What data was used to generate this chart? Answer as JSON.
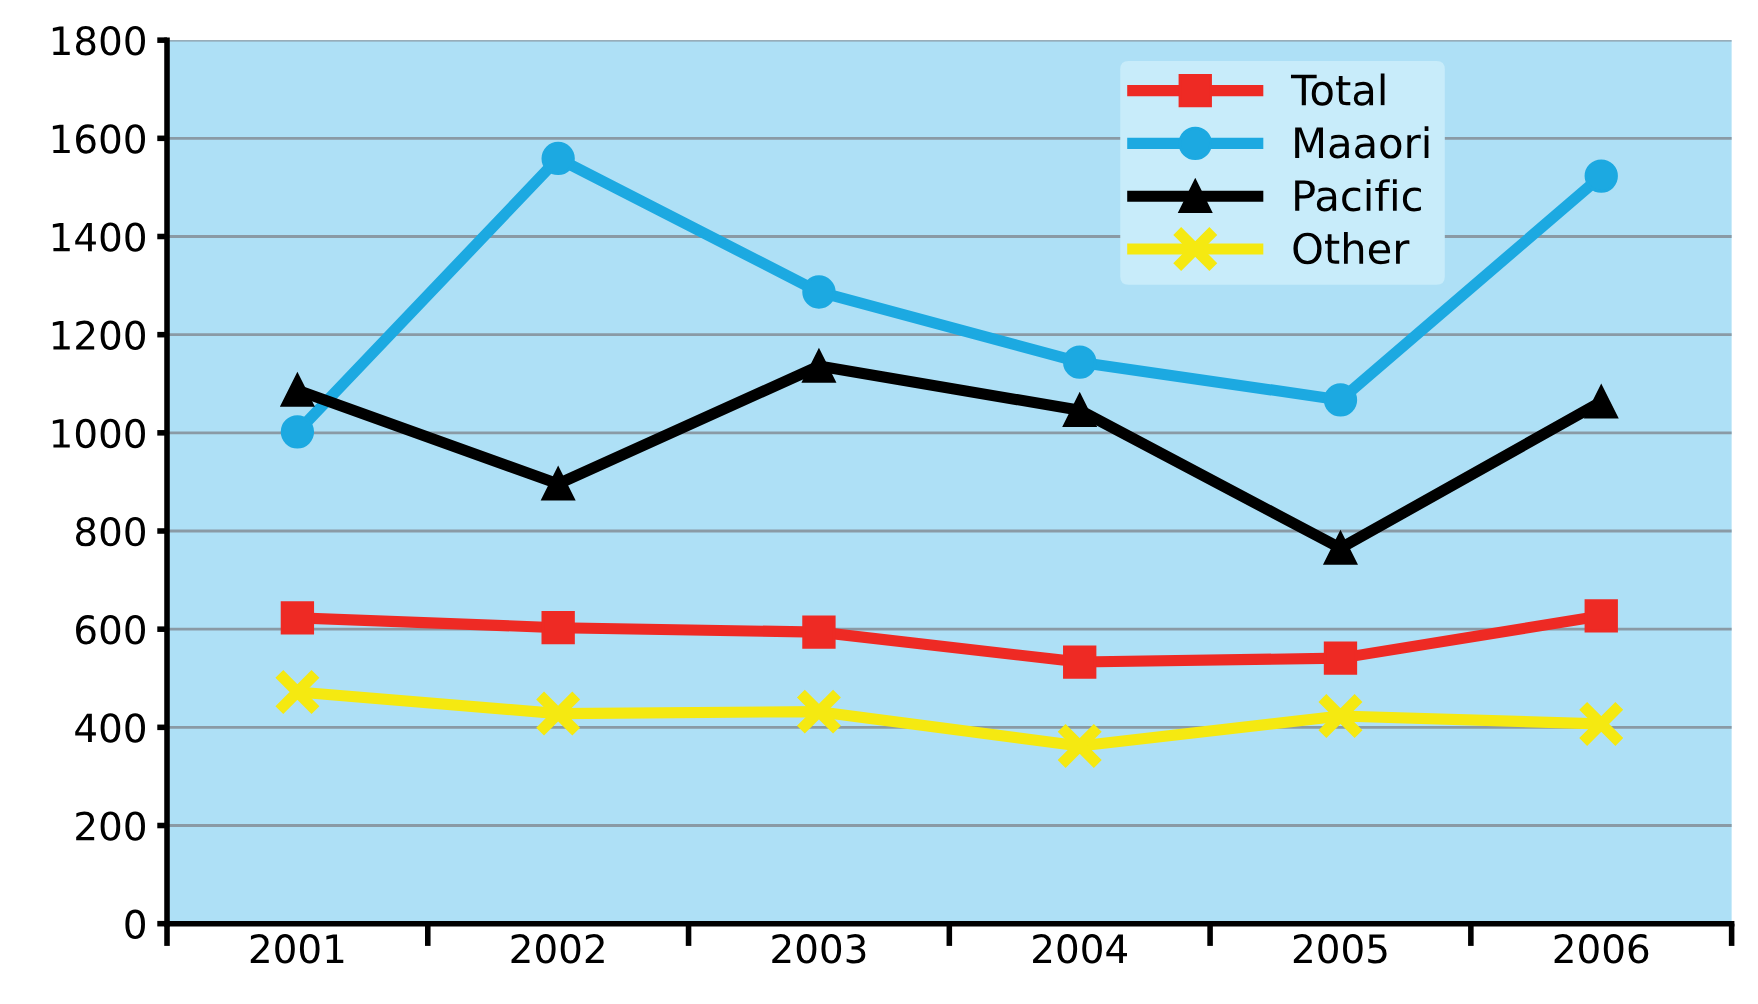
{
  "chart_data": {
    "type": "line",
    "categories": [
      "2001",
      "2002",
      "2003",
      "2004",
      "2005",
      "2006"
    ],
    "series": [
      {
        "name": "Total",
        "color": "#ee2a24",
        "values": [
          623,
          603,
          594,
          533,
          541,
          627
        ],
        "marker": "square"
      },
      {
        "name": "Maaori",
        "color": "#1ca9e1",
        "values": [
          1002,
          1559,
          1287,
          1144,
          1067,
          1523
        ],
        "marker": "circle"
      },
      {
        "name": "Pacific",
        "color": "#000000",
        "values": [
          1087,
          896,
          1136,
          1046,
          765,
          1063
        ],
        "marker": "triangle"
      },
      {
        "name": "Other",
        "color": "#f5e911",
        "values": [
          472,
          428,
          432,
          362,
          423,
          407
        ],
        "marker": "cross"
      }
    ],
    "ylim": [
      0,
      1800
    ],
    "yticks": [
      0,
      200,
      400,
      600,
      800,
      1000,
      1200,
      1400,
      1600,
      1800
    ],
    "grid": "y",
    "legend": "top right",
    "line_style": "solid"
  }
}
